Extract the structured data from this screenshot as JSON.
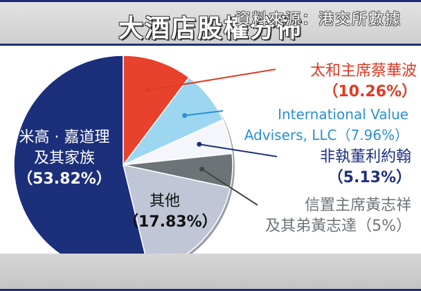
{
  "chart_data": {
    "type": "pie",
    "title": "大酒店股權分佈",
    "source": "資料來源：港交所數據",
    "slices": [
      {
        "name": "米高 · 嘉道理",
        "name2": "及其家族",
        "pct_label": "（53.82%）",
        "value": 53.82,
        "color": "#1b2f7a"
      },
      {
        "name": "太和主席蔡華波",
        "pct_label": "（10.26%）",
        "value": 10.26,
        "color": "#e8412c"
      },
      {
        "name": "International Value",
        "name2": "Advisers, LLC（7.96%）",
        "value": 7.96,
        "color": "#9dd6f0"
      },
      {
        "name": "非執董利約翰",
        "pct_label": "（5.13%）",
        "value": 5.13,
        "color": "#f4f6fb"
      },
      {
        "name": "信置主席黃志祥",
        "name2": "及其弟黃志達（5%）",
        "value": 5.0,
        "color": "#6d7478"
      },
      {
        "name": "其他",
        "pct_label": "（17.83%）",
        "value": 17.83,
        "color": "#c0c6d6"
      }
    ]
  }
}
